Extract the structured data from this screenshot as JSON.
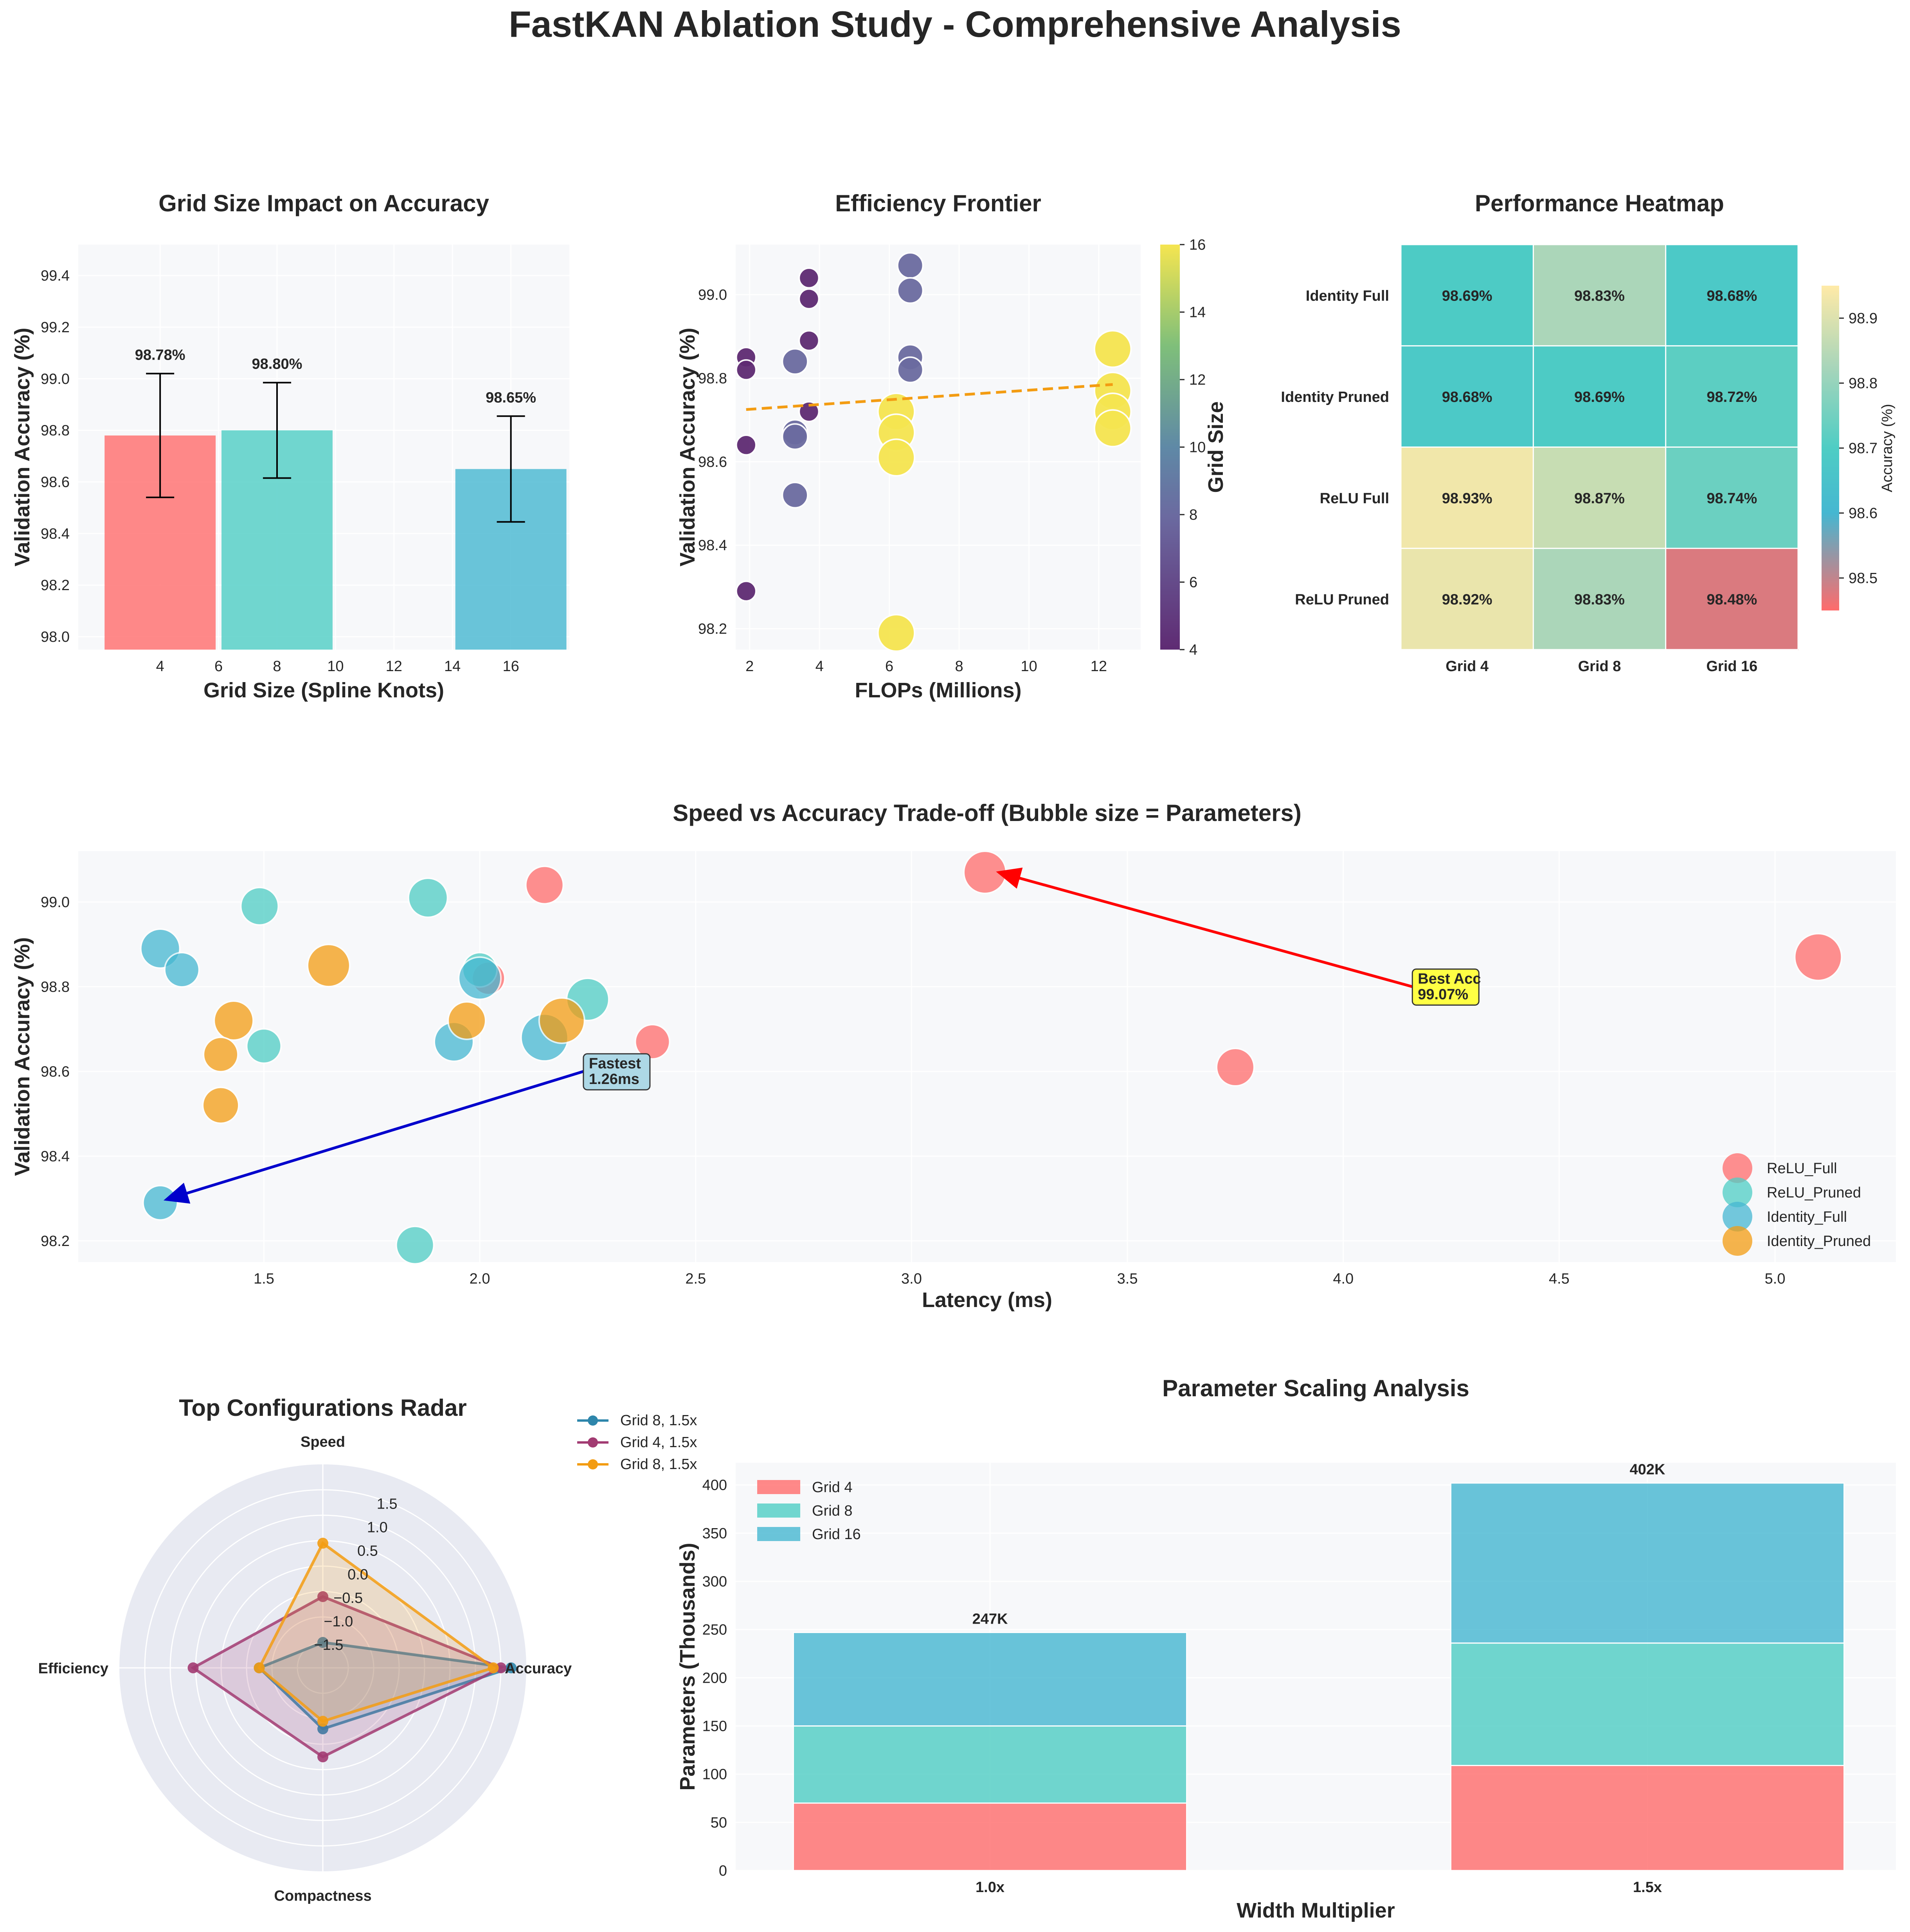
{
  "title": "FastKAN Ablation Study - Comprehensive Analysis",
  "colors": {
    "relu_full": "#FF6B6B",
    "relu_pruned": "#4ECDC4",
    "identity_full": "#45B7D1",
    "identity_pruned": "#F39C12",
    "best_arrow": "#FF0000",
    "fast_arrow": "#0000CC",
    "trend": "#F39C12",
    "bg": "#F7F8FA"
  },
  "chart_data": [
    {
      "id": "grid_bar",
      "type": "bar",
      "title": "Grid Size Impact on Accuracy",
      "xlabel": "Grid Size (Spline Knots)",
      "ylabel": "Validation Accuracy (%)",
      "categories": [
        4,
        8,
        16
      ],
      "values": [
        98.78,
        98.8,
        98.65
      ],
      "errors": [
        0.24,
        0.185,
        0.205
      ],
      "labels": [
        "98.78%",
        "98.80%",
        "98.65%"
      ],
      "xlim": [
        1.2,
        18
      ],
      "xticks": [
        4,
        6,
        8,
        10,
        12,
        14,
        16
      ],
      "ylim": [
        97.95,
        99.52
      ],
      "yticks": [
        98.0,
        98.2,
        98.4,
        98.6,
        98.8,
        99.0,
        99.2,
        99.4
      ]
    },
    {
      "id": "frontier",
      "type": "scatter",
      "title": "Efficiency Frontier",
      "xlabel": "FLOPs (Millions)",
      "ylabel": "Validation Accuracy (%)",
      "colorbar_label": "Grid Size",
      "xlim": [
        1.6,
        13.2
      ],
      "xticks": [
        2,
        4,
        6,
        8,
        10,
        12
      ],
      "ylim": [
        98.15,
        99.12
      ],
      "yticks": [
        98.2,
        98.4,
        98.6,
        98.8,
        99.0
      ],
      "cticks": [
        4,
        6,
        8,
        10,
        12,
        14,
        16
      ],
      "points": [
        [
          1.9,
          98.85,
          4
        ],
        [
          1.9,
          98.82,
          4
        ],
        [
          1.9,
          98.64,
          4
        ],
        [
          1.9,
          98.29,
          4
        ],
        [
          3.7,
          99.04,
          4
        ],
        [
          3.7,
          98.99,
          4
        ],
        [
          3.7,
          98.89,
          4
        ],
        [
          3.7,
          98.72,
          4
        ],
        [
          3.3,
          98.84,
          8
        ],
        [
          3.3,
          98.67,
          8
        ],
        [
          3.3,
          98.66,
          8
        ],
        [
          3.3,
          98.52,
          8
        ],
        [
          6.6,
          99.07,
          8
        ],
        [
          6.6,
          99.01,
          8
        ],
        [
          6.6,
          98.85,
          8
        ],
        [
          6.6,
          98.82,
          8
        ],
        [
          6.2,
          98.72,
          16
        ],
        [
          6.2,
          98.67,
          16
        ],
        [
          6.2,
          98.61,
          16
        ],
        [
          6.2,
          98.19,
          16
        ],
        [
          12.4,
          98.87,
          16
        ],
        [
          12.4,
          98.77,
          16
        ],
        [
          12.4,
          98.72,
          16
        ],
        [
          12.4,
          98.68,
          16
        ]
      ],
      "trend": [
        [
          1.9,
          98.725
        ],
        [
          12.4,
          98.785
        ]
      ]
    },
    {
      "id": "heatmap",
      "type": "heatmap",
      "title": "Performance Heatmap",
      "colorbar_label": "Accuracy (%)",
      "rows": [
        "Identity Full",
        "Identity Pruned",
        "ReLU Full",
        "ReLU Pruned"
      ],
      "cols": [
        "Grid 4",
        "Grid 8",
        "Grid 16"
      ],
      "values": [
        [
          98.69,
          98.83,
          98.68
        ],
        [
          98.68,
          98.69,
          98.72
        ],
        [
          98.93,
          98.87,
          98.74
        ],
        [
          98.92,
          98.83,
          98.48
        ]
      ],
      "labels": [
        [
          "98.69%",
          "98.83%",
          "98.68%"
        ],
        [
          "98.68%",
          "98.69%",
          "98.72%"
        ],
        [
          "98.93%",
          "98.87%",
          "98.74%"
        ],
        [
          "98.92%",
          "98.83%",
          "98.48%"
        ]
      ],
      "crange": [
        98.45,
        98.95
      ],
      "cticks": [
        98.5,
        98.6,
        98.7,
        98.8,
        98.9
      ]
    },
    {
      "id": "tradeoff",
      "type": "scatter",
      "title": "Speed vs Accuracy Trade-off (Bubble size = Parameters)",
      "xlabel": "Latency (ms)",
      "ylabel": "Validation Accuracy (%)",
      "xlim": [
        1.07,
        5.28
      ],
      "xticks": [
        1.5,
        2.0,
        2.5,
        3.0,
        3.5,
        4.0,
        4.5,
        5.0
      ],
      "ylim": [
        98.15,
        99.12
      ],
      "yticks": [
        98.2,
        98.4,
        98.6,
        98.8,
        99.0
      ],
      "series": [
        {
          "name": "ReLU_Full",
          "points": [
            [
              3.17,
              99.07,
              1.3
            ],
            [
              2.15,
              99.04,
              1.0
            ],
            [
              2.02,
              98.82,
              0.7
            ],
            [
              2.4,
              98.67,
              0.8
            ],
            [
              3.75,
              98.61,
              1.0
            ],
            [
              5.1,
              98.87,
              1.6
            ]
          ]
        },
        {
          "name": "ReLU_Pruned",
          "points": [
            [
              1.49,
              98.99,
              1.0
            ],
            [
              1.88,
              99.01,
              1.1
            ],
            [
              2.0,
              98.84,
              0.8
            ],
            [
              2.25,
              98.77,
              1.3
            ],
            [
              1.5,
              98.66,
              0.8
            ],
            [
              1.85,
              98.19,
              1.0
            ]
          ]
        },
        {
          "name": "Identity_Full",
          "points": [
            [
              1.26,
              98.89,
              1.1
            ],
            [
              1.31,
              98.84,
              0.8
            ],
            [
              2.0,
              98.82,
              1.3
            ],
            [
              1.94,
              98.67,
              1.1
            ],
            [
              2.15,
              98.68,
              1.6
            ],
            [
              1.26,
              98.29,
              0.8
            ]
          ]
        },
        {
          "name": "Identity_Pruned",
          "points": [
            [
              1.65,
              98.85,
              1.3
            ],
            [
              1.43,
              98.72,
              1.1
            ],
            [
              1.4,
              98.64,
              0.8
            ],
            [
              1.4,
              98.52,
              0.9
            ],
            [
              1.97,
              98.72,
              1.0
            ],
            [
              2.19,
              98.72,
              1.5
            ]
          ]
        }
      ],
      "annotations": [
        {
          "text": [
            "Best Acc",
            "99.07%"
          ],
          "at": [
            3.17,
            99.07
          ],
          "box": [
            4.16,
            98.8
          ]
        },
        {
          "text": [
            "Fastest",
            "1.26ms"
          ],
          "at": [
            1.26,
            98.29
          ],
          "box": [
            2.24,
            98.6
          ]
        }
      ]
    },
    {
      "id": "radar",
      "type": "radar",
      "title": "Top Configurations Radar",
      "axes": [
        "Speed",
        "Efficiency",
        "Compactness",
        "Accuracy"
      ],
      "rlim": [
        -2.0,
        2.0
      ],
      "rticks": [
        -1.5,
        -1.0,
        -0.5,
        0.0,
        0.5,
        1.0,
        1.5
      ],
      "rtick_labels": [
        "−1.5",
        "−1.0",
        "−0.5",
        "0.0",
        "0.5",
        "1.0",
        "1.5"
      ],
      "series": [
        {
          "name": "Grid 8, 1.5x",
          "color": "#2E86AB",
          "values": [
            -1.5,
            -0.75,
            -0.8,
            1.7
          ]
        },
        {
          "name": "Grid 4, 1.5x",
          "color": "#A23B72",
          "values": [
            -0.6,
            0.55,
            -0.25,
            1.5
          ]
        },
        {
          "name": "Grid 8, 1.5x",
          "color": "#F39C12",
          "values": [
            0.45,
            -0.75,
            -0.95,
            1.35
          ]
        }
      ]
    },
    {
      "id": "param_scaling",
      "type": "bar",
      "title": "Parameter Scaling Analysis",
      "xlabel": "Width Multiplier",
      "ylabel": "Parameters (Thousands)",
      "categories": [
        "1.0x",
        "1.5x"
      ],
      "ylim": [
        0,
        423
      ],
      "yticks": [
        0,
        50,
        100,
        150,
        200,
        250,
        300,
        350,
        400
      ],
      "series": [
        {
          "name": "Grid 4",
          "values": [
            70,
            109
          ]
        },
        {
          "name": "Grid 8",
          "values": [
            80,
            127
          ]
        },
        {
          "name": "Grid 16",
          "values": [
            97,
            166
          ]
        }
      ],
      "totals": [
        "247K",
        "402K"
      ]
    }
  ]
}
